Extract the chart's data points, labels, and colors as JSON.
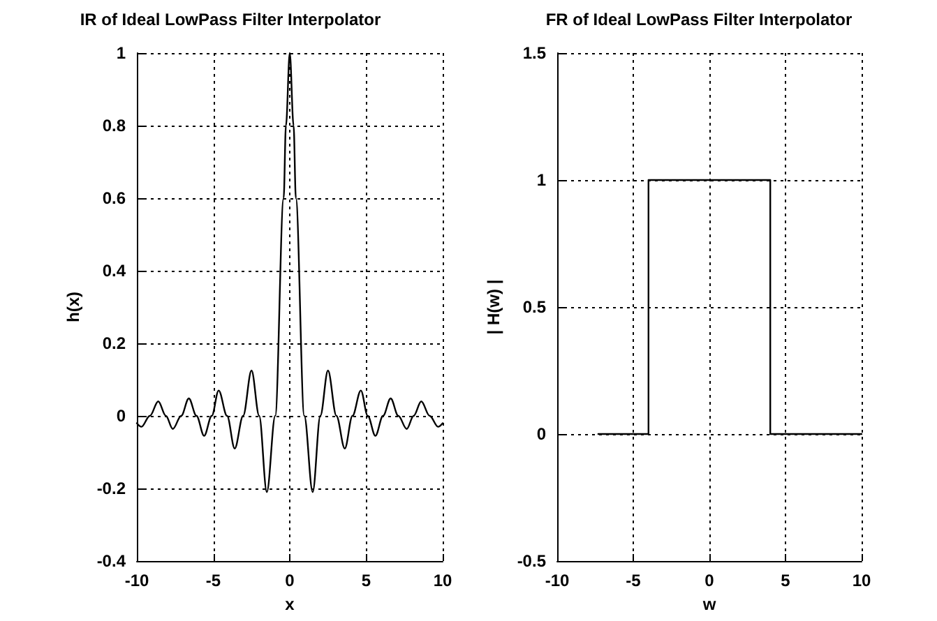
{
  "chart_data": [
    {
      "type": "line",
      "title": "IR of Ideal LowPass Filter Interpolator",
      "xlabel": "x",
      "ylabel": "h(x)",
      "x": [
        -10,
        -9.7,
        -9.15,
        -8.6,
        -8.1,
        -7.65,
        -7.1,
        -6.6,
        -6.1,
        -5.6,
        -5.1,
        -4.65,
        -4.1,
        -3.6,
        -3.05,
        -2.5,
        -2.0,
        -1.5,
        -0.95,
        -0.4,
        -0.25,
        0,
        0.25,
        0.4,
        0.95,
        1.5,
        2.0,
        2.5,
        3.05,
        3.6,
        4.1,
        4.65,
        5.1,
        5.6,
        6.1,
        6.6,
        7.1,
        7.65,
        8.1,
        8.6,
        9.15,
        9.7,
        10
      ],
      "series": [
        {
          "color": "#000000",
          "values": [
            -0.02,
            -0.03,
            0,
            0.04,
            0,
            -0.036,
            0,
            0.048,
            0,
            -0.055,
            0,
            0.07,
            0,
            -0.09,
            0,
            0.125,
            0,
            -0.21,
            0,
            0.6,
            0.8,
            1,
            0.8,
            0.6,
            0,
            -0.21,
            0,
            0.125,
            0,
            -0.09,
            0,
            0.07,
            0,
            -0.055,
            0,
            0.048,
            0,
            -0.036,
            0,
            0.04,
            0,
            -0.03,
            -0.02
          ]
        }
      ],
      "xlim": [
        -10,
        10
      ],
      "xticks": [
        -10,
        -5,
        0,
        5,
        10
      ],
      "ylim": [
        -0.4,
        1
      ],
      "yticks": [
        -0.4,
        -0.2,
        0,
        0.2,
        0.4,
        0.6,
        0.8,
        1
      ],
      "grid": true,
      "marker": "none",
      "line_style": "solid"
    },
    {
      "type": "line",
      "title": "FR of Ideal LowPass Filter Interpolator",
      "xlabel": "w",
      "ylabel": "| H(w) |",
      "x": [
        -7.3,
        -4,
        -4,
        4,
        4,
        10
      ],
      "series": [
        {
          "color": "#000000",
          "values": [
            0,
            0,
            1,
            1,
            0,
            0
          ]
        }
      ],
      "xlim": [
        -10,
        10
      ],
      "xticks": [
        -10,
        -5,
        0,
        5,
        10
      ],
      "ylim": [
        -0.5,
        1.5
      ],
      "yticks": [
        -0.5,
        0,
        0.5,
        1,
        1.5
      ],
      "grid": true,
      "marker": "none",
      "line_style": "solid"
    }
  ]
}
